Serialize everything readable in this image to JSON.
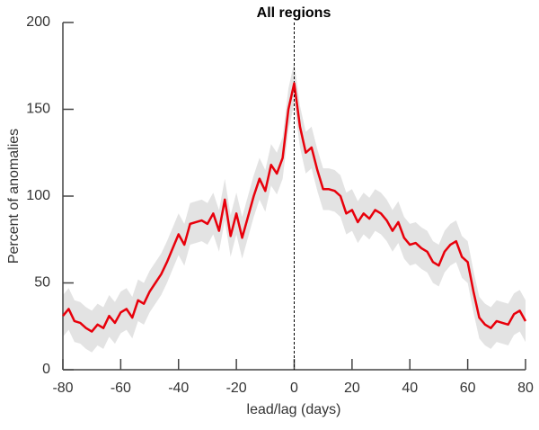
{
  "chart_data": {
    "type": "line",
    "title": "All regions",
    "xlabel": "lead/lag (days)",
    "ylabel": "Percent of anomalies",
    "x": [
      -80,
      -78,
      -76,
      -74,
      -72,
      -70,
      -68,
      -66,
      -64,
      -62,
      -60,
      -58,
      -56,
      -54,
      -52,
      -50,
      -48,
      -46,
      -44,
      -42,
      -40,
      -38,
      -36,
      -34,
      -32,
      -30,
      -28,
      -26,
      -24,
      -22,
      -20,
      -18,
      -16,
      -14,
      -12,
      -10,
      -8,
      -6,
      -4,
      -2,
      0,
      2,
      4,
      6,
      8,
      10,
      12,
      14,
      16,
      18,
      20,
      22,
      24,
      26,
      28,
      30,
      32,
      34,
      36,
      38,
      40,
      42,
      44,
      46,
      48,
      50,
      52,
      54,
      56,
      58,
      60,
      62,
      64,
      66,
      68,
      70,
      72,
      74,
      76,
      78,
      80
    ],
    "series": [
      {
        "color": "#e8000b",
        "values": [
          31,
          35,
          28,
          27,
          24,
          22,
          26,
          24,
          31,
          27,
          33,
          35,
          30,
          40,
          38,
          45,
          50,
          55,
          62,
          70,
          78,
          72,
          84,
          85,
          86,
          84,
          90,
          80,
          98,
          77,
          90,
          76,
          88,
          100,
          110,
          103,
          118,
          113,
          122,
          150,
          165,
          140,
          125,
          128,
          115,
          104,
          104,
          103,
          100,
          90,
          92,
          85,
          90,
          87,
          92,
          90,
          86,
          80,
          85,
          76,
          72,
          73,
          70,
          68,
          62,
          60,
          68,
          72,
          74,
          65,
          62,
          45,
          30,
          26,
          24,
          28,
          27,
          26,
          32,
          34,
          28
        ]
      }
    ],
    "band": {
      "color": "#e3e3e3",
      "upper": [
        43,
        47,
        40,
        39,
        36,
        34,
        38,
        36,
        43,
        39,
        45,
        47,
        42,
        52,
        50,
        57,
        62,
        67,
        74,
        82,
        90,
        84,
        96,
        97,
        98,
        96,
        102,
        92,
        110,
        89,
        102,
        88,
        100,
        112,
        122,
        115,
        130,
        125,
        134,
        162,
        177,
        152,
        137,
        140,
        127,
        116,
        116,
        115,
        112,
        102,
        104,
        97,
        102,
        99,
        104,
        102,
        98,
        92,
        97,
        88,
        84,
        85,
        82,
        80,
        74,
        72,
        80,
        84,
        86,
        77,
        74,
        57,
        42,
        38,
        36,
        40,
        39,
        38,
        44,
        46,
        40
      ],
      "lower": [
        19,
        23,
        16,
        15,
        12,
        10,
        14,
        12,
        19,
        15,
        21,
        23,
        18,
        28,
        26,
        33,
        38,
        43,
        50,
        58,
        66,
        60,
        72,
        73,
        74,
        72,
        78,
        68,
        86,
        65,
        78,
        64,
        76,
        88,
        98,
        91,
        106,
        101,
        110,
        138,
        153,
        128,
        113,
        116,
        103,
        92,
        92,
        91,
        88,
        78,
        80,
        73,
        78,
        75,
        80,
        78,
        74,
        68,
        73,
        64,
        60,
        61,
        58,
        56,
        50,
        48,
        56,
        60,
        62,
        53,
        50,
        33,
        18,
        14,
        12,
        16,
        15,
        14,
        20,
        22,
        16
      ]
    },
    "vline": 0,
    "xlim": [
      -80,
      80
    ],
    "xticks": [
      -80,
      -60,
      -40,
      -20,
      0,
      20,
      40,
      60,
      80
    ],
    "ylim": [
      0,
      200
    ],
    "yticks": [
      0,
      50,
      100,
      150,
      200
    ]
  }
}
